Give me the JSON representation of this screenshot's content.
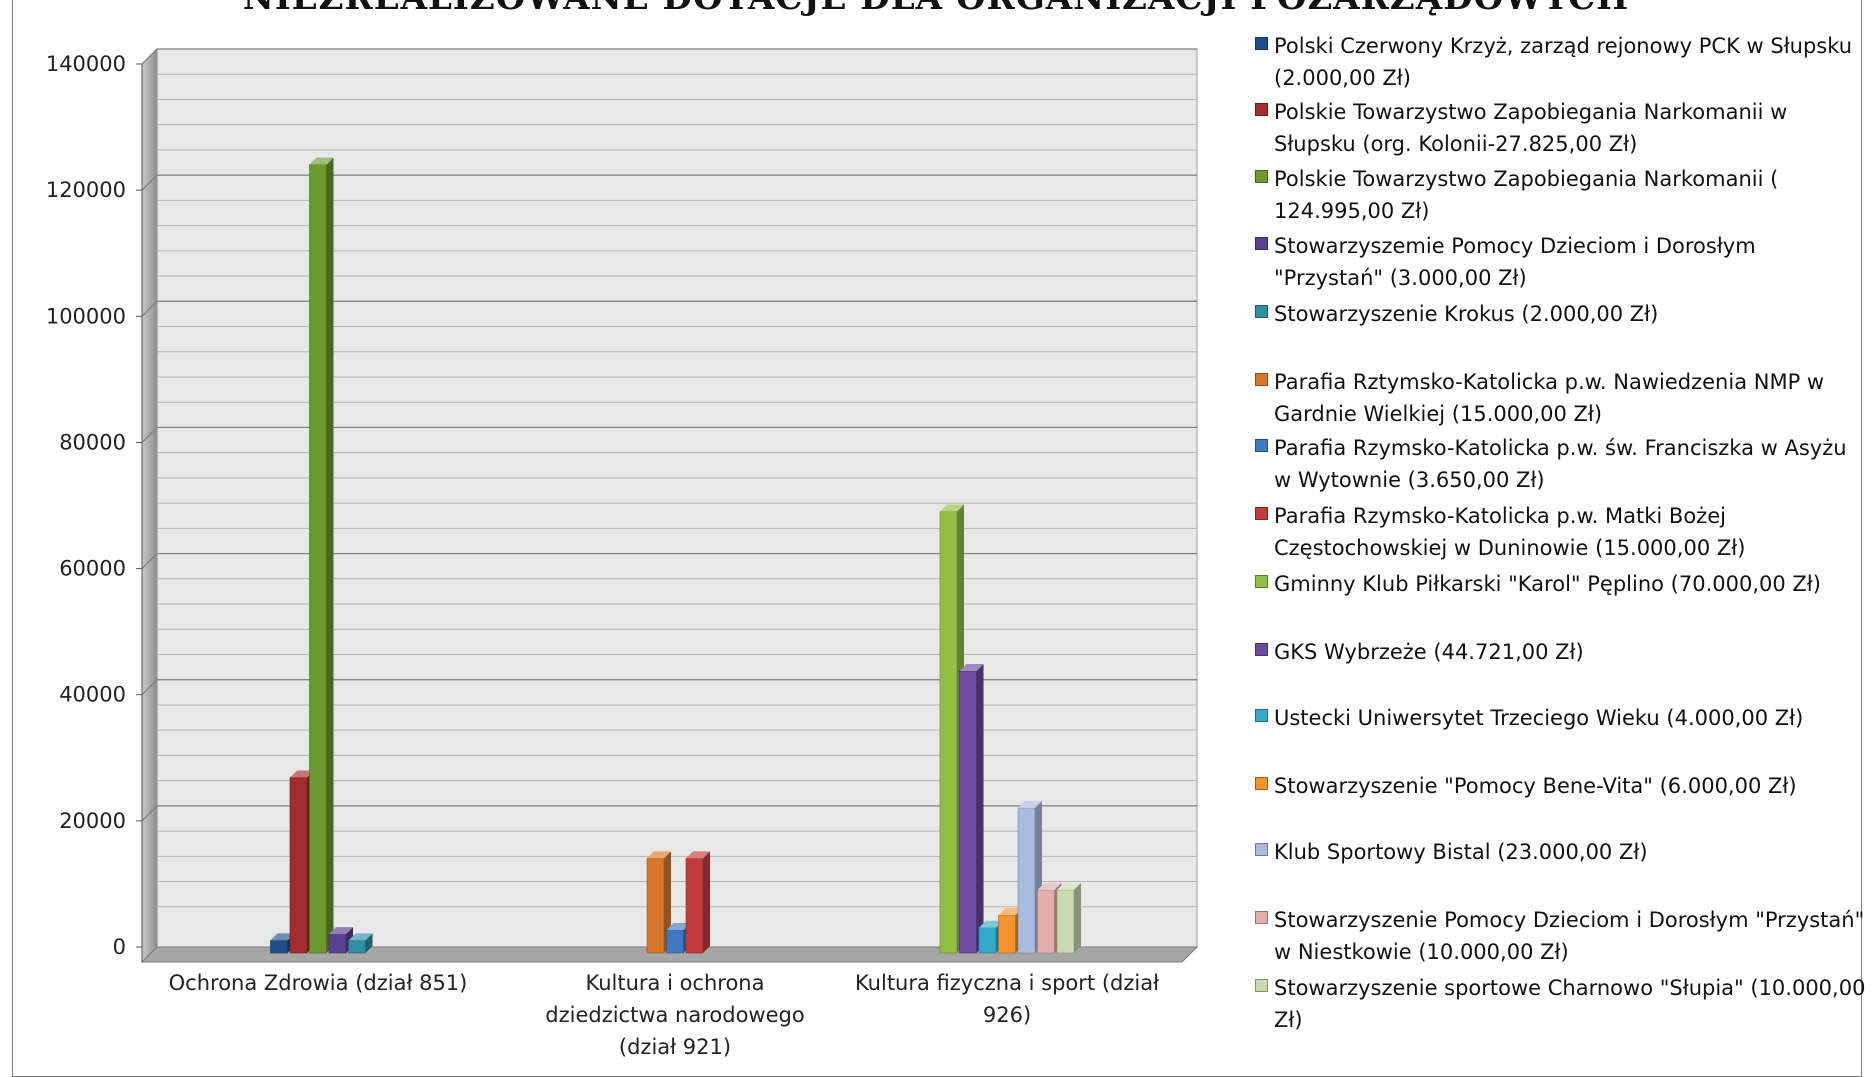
{
  "chart_data": {
    "type": "bar",
    "title": "NIEZREALIZOWANE DOTACJE DLA ORGANIZACJI POZARZĄDOWYCH",
    "categories": [
      "Ochrona Zdrowia (dział 851)",
      "Kultura i ochrona dziedzictwa narodowego (dział 921)",
      "Kultura fizyczna i sport (dział 926)"
    ],
    "category_lines": [
      [
        "Ochrona Zdrowia (dział 851)"
      ],
      [
        "Kultura i ochrona",
        "dziedzictwa narodowego",
        "(dział 921)"
      ],
      [
        "Kultura fizyczna i sport (dział",
        "926)"
      ]
    ],
    "ylim": [
      0,
      140000
    ],
    "yticks": [
      "0",
      "20000",
      "40000",
      "60000",
      "80000",
      "100000",
      "120000",
      "140000"
    ],
    "ytick_values": [
      0,
      20000,
      40000,
      60000,
      80000,
      100000,
      120000,
      140000
    ],
    "grid": true,
    "legend_position": "right",
    "series": [
      {
        "name": "Polski Czerwony Krzyż, zarząd rejonowy PCK w Słupsku (2.000,00 Zł)",
        "color": "#1f4e8c",
        "values": [
          2000,
          0,
          0
        ]
      },
      {
        "name": "Polskie Towarzystwo Zapobiegania Narkomanii w Słupsku (org. Kolonii-27.825,00 Zł)",
        "color": "#a12d2d",
        "values": [
          27825,
          0,
          0
        ]
      },
      {
        "name": "Polskie Towarzystwo Zapobiegania Narkomanii ( 124.995,00 Zł)",
        "color": "#6d9a2e",
        "values": [
          124995,
          0,
          0
        ]
      },
      {
        "name": "Stowarzyszemie Pomocy Dzieciom i Dorosłym \"Przystań\" (3.000,00 Zł)",
        "color": "#5a3f8e",
        "values": [
          3000,
          0,
          0
        ]
      },
      {
        "name": "Stowarzyszenie Krokus (2.000,00 Zł)",
        "color": "#2f8ca3",
        "values": [
          2000,
          0,
          0
        ]
      },
      {
        "name": "Parafia Rztymsko-Katolicka p.w. Nawiedzenia NMP w Gardnie Wielkiej (15.000,00 Zł)",
        "color": "#d9782b",
        "values": [
          0,
          15000,
          0
        ]
      },
      {
        "name": "Parafia Rzymsko-Katolicka p.w. św. Franciszka w Asyżu w Wytownie (3.650,00 Zł)",
        "color": "#3e78c2",
        "values": [
          0,
          3650,
          0
        ]
      },
      {
        "name": "Parafia Rzymsko-Katolicka p.w. Matki Bożej Częstochowskiej w Duninowie (15.000,00 Zł)",
        "color": "#c33b3b",
        "values": [
          0,
          15000,
          0
        ]
      },
      {
        "name": "Gminny Klub Piłkarski \"Karol\" Pęplino (70.000,00 Zł)",
        "color": "#8fbf45",
        "values": [
          0,
          0,
          70000
        ]
      },
      {
        "name": "GKS Wybrzeże (44.721,00 Zł)",
        "color": "#6a4a9c",
        "values": [
          0,
          0,
          44721
        ]
      },
      {
        "name": "Ustecki Uniwersytet Trzeciego Wieku (4.000,00 Zł)",
        "color": "#35a9c9",
        "values": [
          0,
          0,
          4000
        ]
      },
      {
        "name": "Stowarzyszenie \"Pomocy Bene-Vita\" (6.000,00 Zł)",
        "color": "#f5932e",
        "values": [
          0,
          0,
          6000
        ]
      },
      {
        "name": "Klub Sportowy Bistal (23.000,00 Zł)",
        "color": "#a9bcdf",
        "values": [
          0,
          0,
          23000
        ]
      },
      {
        "name": "Stowarzyszenie Pomocy Dzieciom i Dorosłym \"Przystań\" w Niestkowie (10.000,00 Zł)",
        "color": "#e2aeae",
        "values": [
          0,
          0,
          10000
        ]
      },
      {
        "name": "Stowarzyszenie sportowe Charnowo \"Słupia\" (10.000,00 Zł)",
        "color": "#c9dbb0",
        "values": [
          0,
          0,
          10000
        ]
      }
    ]
  }
}
